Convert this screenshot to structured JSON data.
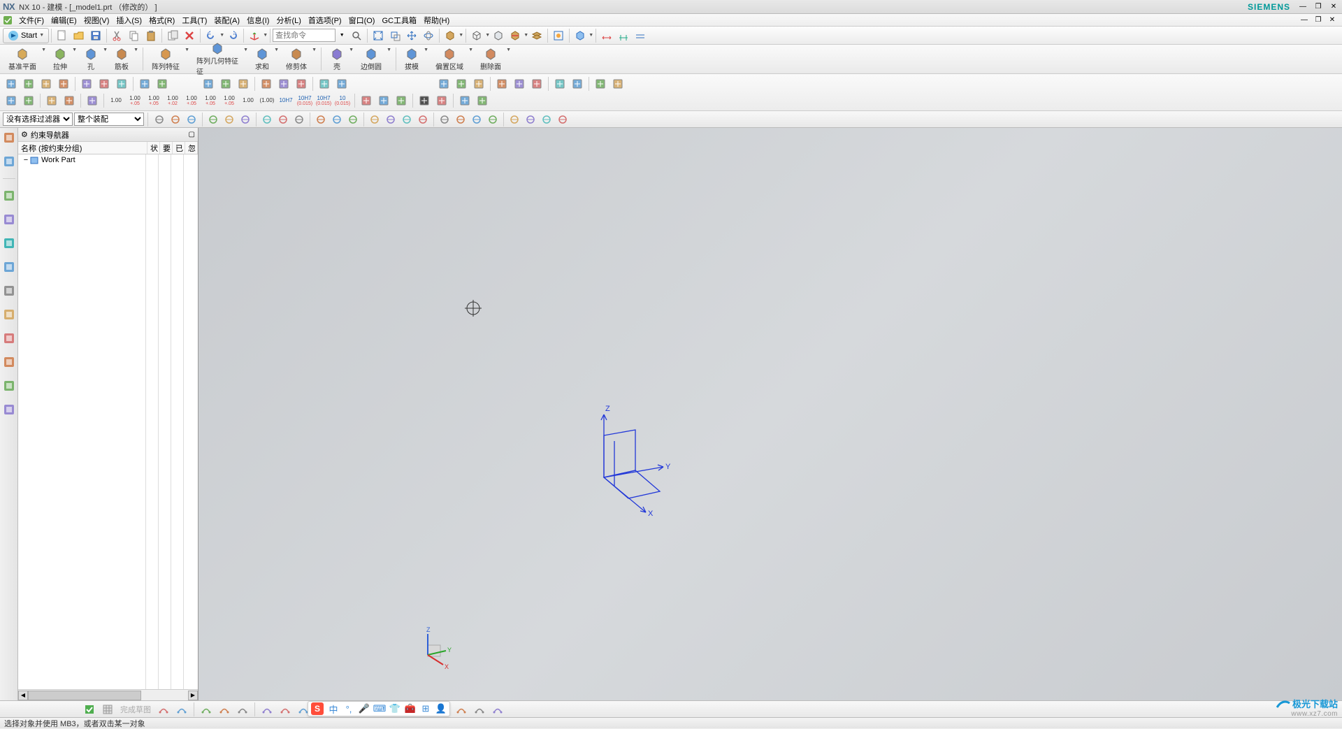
{
  "titlebar": {
    "app": "NX",
    "title": "NX 10 - 建模 - [_model1.prt （修改的） ]",
    "brand": "SIEMENS"
  },
  "menubar": {
    "items": [
      "文件(F)",
      "编辑(E)",
      "视图(V)",
      "插入(S)",
      "格式(R)",
      "工具(T)",
      "装配(A)",
      "信息(I)",
      "分析(L)",
      "首选项(P)",
      "窗口(O)",
      "GC工具箱",
      "帮助(H)"
    ]
  },
  "toolbar1": {
    "start": "Start",
    "search_placeholder": "查找命令"
  },
  "ribbon": {
    "items": [
      {
        "label": "基准平面",
        "color": "#d4a24a"
      },
      {
        "label": "拉伸",
        "color": "#7fae4f"
      },
      {
        "label": "孔",
        "color": "#4f8bd4"
      },
      {
        "label": "筋板",
        "color": "#c47f3f"
      },
      {
        "label": "阵列特征",
        "color": "#d48f3f"
      },
      {
        "label": "阵列几何特征",
        "color": "#4f8bd4",
        "sub": "征"
      },
      {
        "label": "求和",
        "color": "#4f8bd4"
      },
      {
        "label": "修剪体",
        "color": "#c47f3f"
      },
      {
        "label": "壳",
        "color": "#7f6fcf"
      },
      {
        "label": "边倒圆",
        "color": "#4f8bd4"
      },
      {
        "label": "拔模",
        "color": "#4f8bd4"
      },
      {
        "label": "偏置区域",
        "color": "#cf7f4f"
      },
      {
        "label": "删除面",
        "color": "#cf7f4f"
      }
    ]
  },
  "dimlabels": [
    "1.00",
    "1.00",
    "1.00",
    "1.00",
    "1.00",
    "1.00",
    "1.00",
    "1.00",
    "(1.00)",
    "10H7",
    "10H7",
    "10H7",
    "10"
  ],
  "dimsub": [
    "",
    "+.05",
    "+.05",
    "+.02",
    "+.05",
    "+.05",
    "+.05",
    "",
    "",
    "",
    "(0.015)",
    "(0.015)",
    "(0.015)"
  ],
  "filterrow": {
    "filter1": "没有选择过滤器",
    "filter2": "整个装配"
  },
  "navigator": {
    "title": "约束导航器",
    "col1": "名称 (按约束分组)",
    "cols": [
      "状",
      "要",
      "已",
      "忽"
    ],
    "node": "Work Part"
  },
  "viewport": {
    "axes": {
      "x": "X",
      "y": "Y",
      "z": "Z"
    },
    "triad": {
      "x": "X",
      "y": "Y",
      "z": "Z"
    },
    "bg_from": "#c8cbcf",
    "bg_to": "#d6d9dc",
    "axis_color": "#2238d8",
    "triad_colors": {
      "x": "#d62e2e",
      "y": "#2aa52a",
      "z": "#2e5fd6"
    }
  },
  "sketchbar": {
    "finish": "完成草图"
  },
  "ime": {
    "badge": "S",
    "label": "中"
  },
  "status": {
    "msg": "选择对象并使用 MB3，或者双击某一对象"
  },
  "watermark": {
    "brand": "极光下载站",
    "url": "www.xz7.com"
  },
  "colors": {
    "accent": "#3b8bd8",
    "ribbon_bg": "#eaeaea",
    "border": "#cccccc"
  }
}
